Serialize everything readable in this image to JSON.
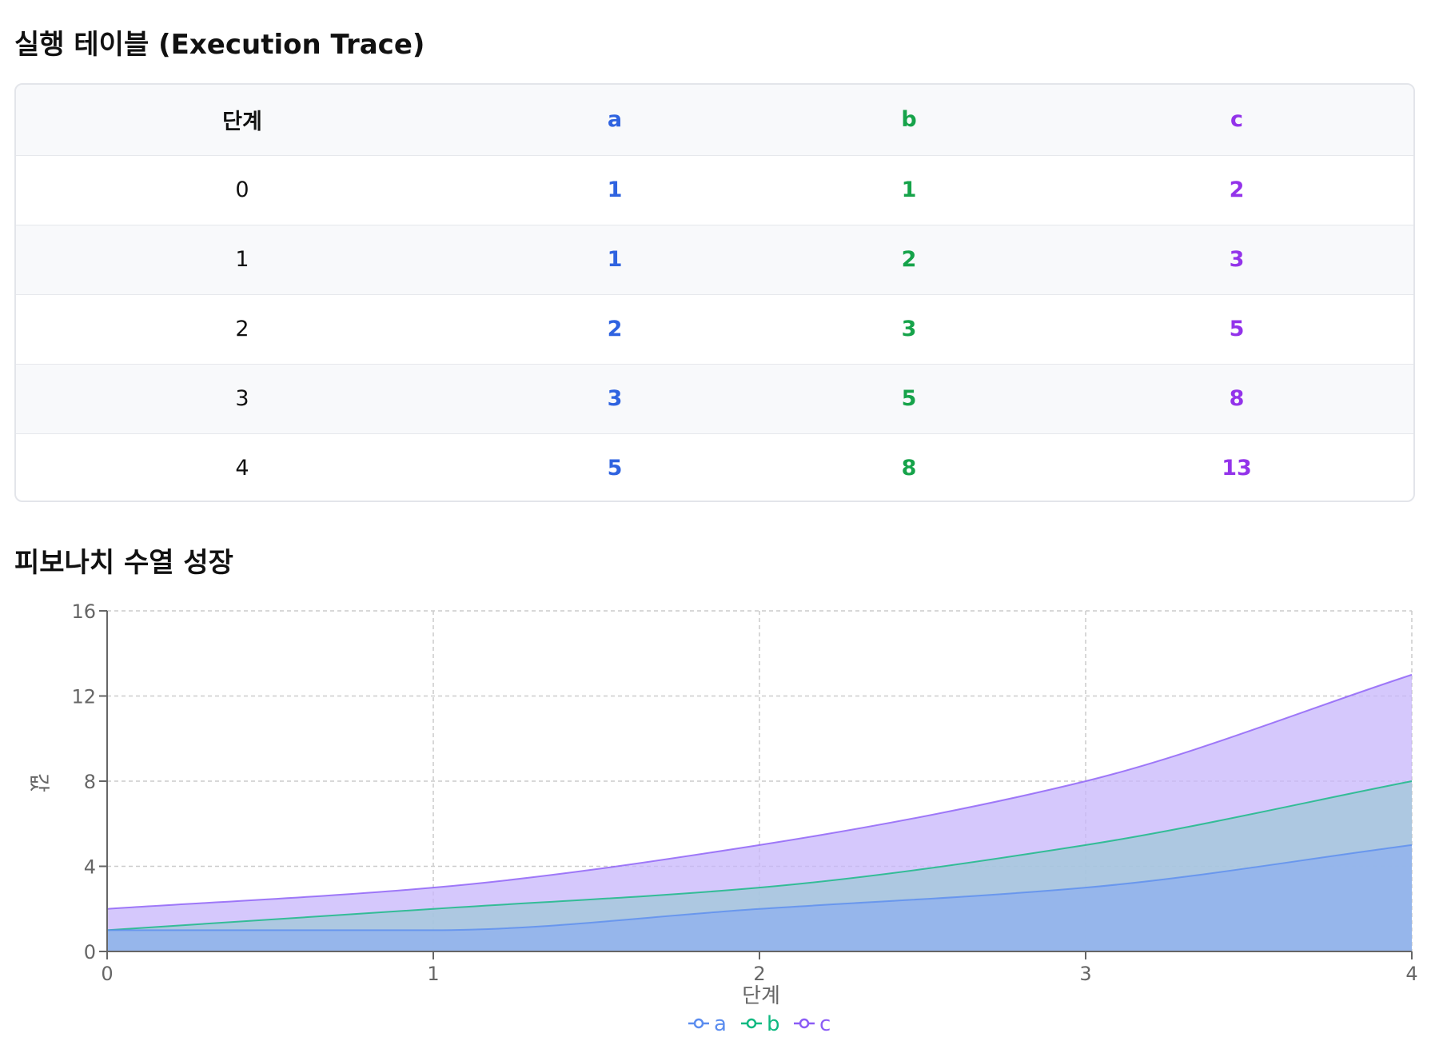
{
  "trace": {
    "title": "실행 테이블 (Execution Trace)",
    "columns": [
      {
        "label": "단계",
        "color": "#111111"
      },
      {
        "label": "a",
        "color": "#2f63e0"
      },
      {
        "label": "b",
        "color": "#16a34a"
      },
      {
        "label": "c",
        "color": "#9333ea"
      }
    ],
    "rows": [
      {
        "step": "0",
        "a": "1",
        "b": "1",
        "c": "2"
      },
      {
        "step": "1",
        "a": "1",
        "b": "2",
        "c": "3"
      },
      {
        "step": "2",
        "a": "2",
        "b": "3",
        "c": "5"
      },
      {
        "step": "3",
        "a": "3",
        "b": "5",
        "c": "8"
      },
      {
        "step": "4",
        "a": "5",
        "b": "8",
        "c": "13"
      }
    ]
  },
  "chart": {
    "title": "피보나치 수열 성장"
  },
  "chart_data": {
    "type": "area",
    "x": [
      0,
      1,
      2,
      3,
      4
    ],
    "xlabel": "단계",
    "ylabel": "값",
    "xlim": [
      0,
      4
    ],
    "ylim": [
      0,
      16
    ],
    "xticks": [
      0,
      1,
      2,
      3,
      4
    ],
    "yticks": [
      0,
      4,
      8,
      12,
      16
    ],
    "grid": true,
    "legend_position": "bottom",
    "series": [
      {
        "name": "a",
        "values": [
          1,
          1,
          2,
          3,
          5
        ],
        "color": "#5b8def",
        "fill": "#8fb0ee"
      },
      {
        "name": "b",
        "values": [
          1,
          2,
          3,
          5,
          8
        ],
        "color": "#10b981",
        "fill": "#9fc8d8"
      },
      {
        "name": "c",
        "values": [
          2,
          3,
          5,
          8,
          13
        ],
        "color": "#8b5cf6",
        "fill": "#c7b6fb"
      }
    ]
  }
}
